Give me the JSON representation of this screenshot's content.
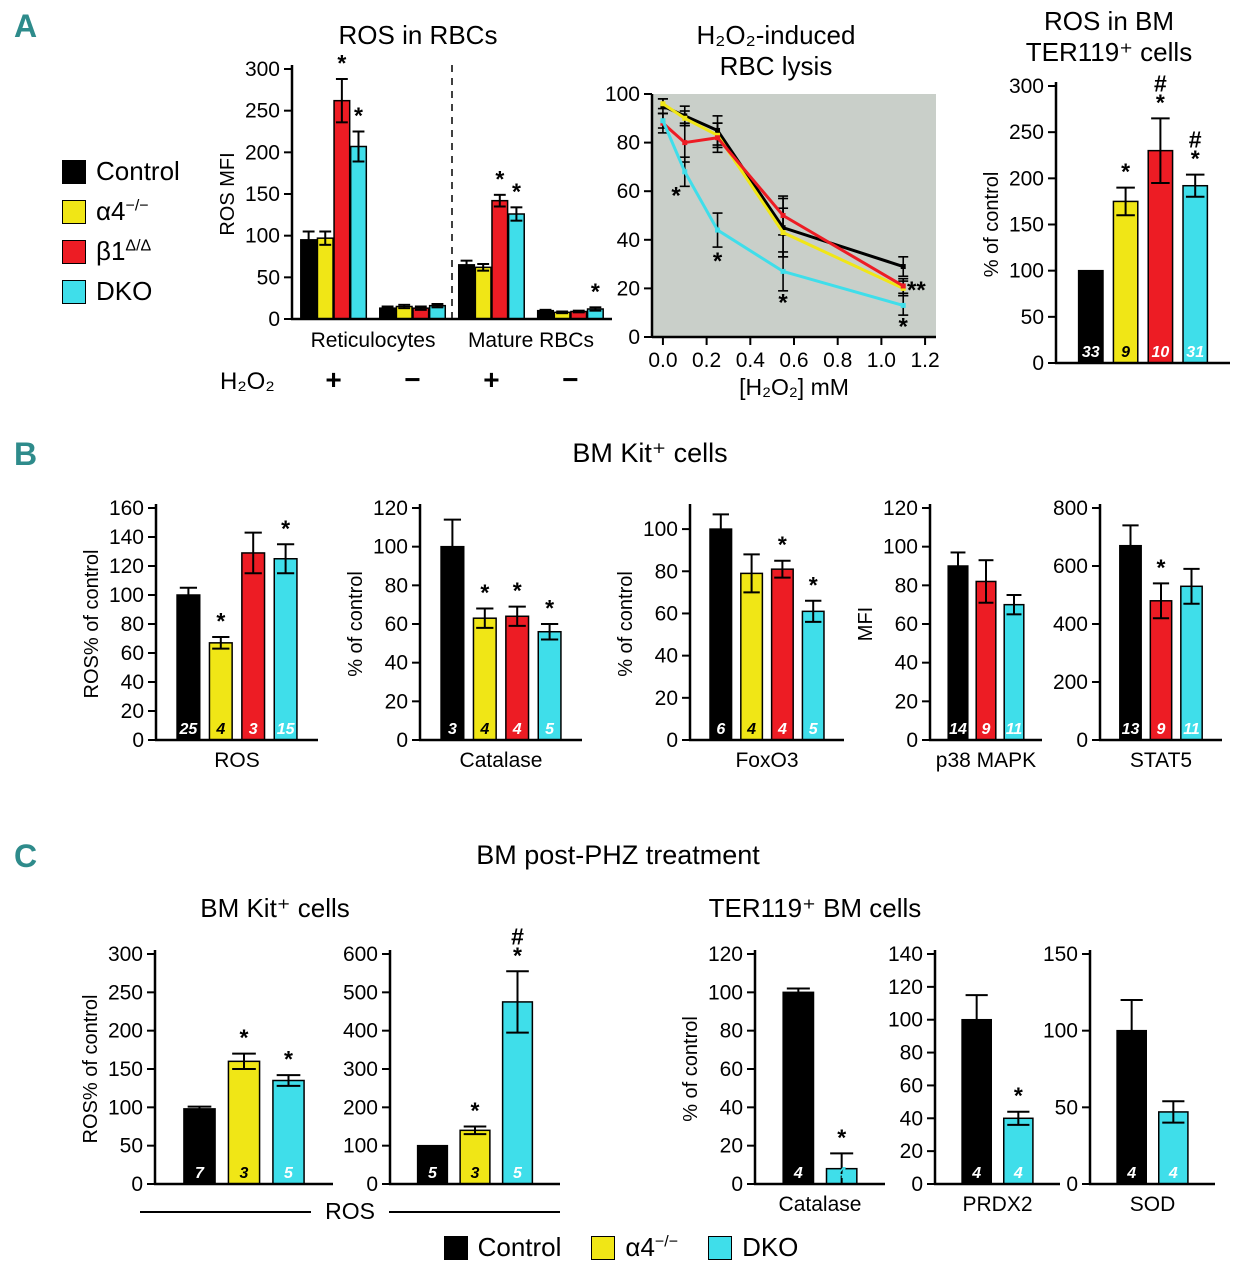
{
  "panels": {
    "a": "A",
    "b": "B",
    "c": "C"
  },
  "colors": {
    "control": "#000000",
    "a4": "#f0e616",
    "b1": "#ed1c24",
    "dko": "#3fdeea",
    "panel": "#2e8b8b",
    "line_bg": "#c9cfc9"
  },
  "titles": {
    "a1": "ROS in RBCs",
    "a2": "H₂O₂-induced\nRBC lysis",
    "a3": "ROS in BM\nTER119⁺ cells",
    "b": "BM Kit⁺ cells",
    "c": "BM post-PHZ treatment",
    "c_kit": "BM Kit⁺ cells",
    "c_ter": "TER119⁺ BM cells",
    "ros_shared": "ROS"
  },
  "legend_a": {
    "items": [
      {
        "key": "control",
        "base": "Control",
        "sup": ""
      },
      {
        "key": "a4",
        "base": "α4",
        "sup": "−/−"
      },
      {
        "key": "b1",
        "base": "β1",
        "sup": "Δ/Δ"
      },
      {
        "key": "dko",
        "base": "DKO",
        "sup": ""
      }
    ]
  },
  "legend_c": {
    "items": [
      {
        "key": "control",
        "base": "Control",
        "sup": ""
      },
      {
        "key": "a4",
        "base": "α4",
        "sup": "−/−"
      },
      {
        "key": "dko",
        "base": "DKO",
        "sup": ""
      }
    ]
  },
  "chart_data": [
    {
      "type": "bar",
      "ylabel": "ROS MFI",
      "ylim": [
        0,
        300
      ],
      "ystep": 50,
      "bar_gap": 0.06,
      "group_gap": 0.75,
      "groups": [
        {
          "sign": "+",
          "bars": [
            {
              "c": "control",
              "v": 95,
              "e": 10
            },
            {
              "c": "a4",
              "v": 97,
              "e": 8
            },
            {
              "c": "b1",
              "v": 262,
              "e": 26,
              "m": "*"
            },
            {
              "c": "dko",
              "v": 207,
              "e": 18,
              "m": "*"
            }
          ]
        },
        {
          "sign": "−",
          "bars": [
            {
              "c": "control",
              "v": 13,
              "e": 2
            },
            {
              "c": "a4",
              "v": 15,
              "e": 2
            },
            {
              "c": "b1",
              "v": 13,
              "e": 2
            },
            {
              "c": "dko",
              "v": 16,
              "e": 2
            }
          ]
        },
        {
          "sign": "+",
          "bars": [
            {
              "c": "control",
              "v": 65,
              "e": 5
            },
            {
              "c": "a4",
              "v": 62,
              "e": 4
            },
            {
              "c": "b1",
              "v": 142,
              "e": 7,
              "m": "*"
            },
            {
              "c": "dko",
              "v": 126,
              "e": 8,
              "m": "*"
            }
          ]
        },
        {
          "sign": "−",
          "bars": [
            {
              "c": "control",
              "v": 10,
              "e": 1
            },
            {
              "c": "a4",
              "v": 8,
              "e": 1
            },
            {
              "c": "b1",
              "v": 9,
              "e": 1
            },
            {
              "c": "dko",
              "v": 12,
              "e": 2,
              "m": "*"
            }
          ]
        }
      ],
      "super_labels": [
        {
          "label": "Reticulocytes",
          "from": 0,
          "to": 1
        },
        {
          "label": "Mature RBCs",
          "from": 2,
          "to": 3
        }
      ],
      "row_label": "H₂O₂",
      "divider_after": 1
    },
    {
      "type": "line",
      "xlabel": "[H₂O₂] mM",
      "xlim": [
        -0.05,
        1.25
      ],
      "xticks": [
        0.0,
        0.2,
        0.4,
        0.6,
        0.8,
        1.0,
        1.2
      ],
      "ylim": [
        0,
        100
      ],
      "ystep": 20,
      "x": [
        0,
        0.1,
        0.25,
        0.55,
        1.1
      ],
      "series": [
        {
          "c": "control",
          "y": [
            95,
            91,
            85,
            45,
            29
          ],
          "e": [
            3,
            4,
            6,
            12,
            4
          ]
        },
        {
          "c": "a4",
          "y": [
            96,
            90,
            83,
            43,
            20
          ],
          "e": [
            2,
            3,
            5,
            10,
            3
          ]
        },
        {
          "c": "b1",
          "y": [
            88,
            80,
            82,
            50,
            21
          ],
          "e": [
            4,
            8,
            6,
            8,
            3
          ]
        },
        {
          "c": "dko",
          "y": [
            89,
            68,
            44,
            27,
            13
          ],
          "e": [
            3,
            6,
            7,
            8,
            4
          ]
        }
      ],
      "annotations": [
        {
          "x": 0.06,
          "y": 55,
          "t": "*"
        },
        {
          "x": 0.25,
          "y": 28,
          "t": "*"
        },
        {
          "x": 0.55,
          "y": 11,
          "t": "*"
        },
        {
          "x": 1.16,
          "y": 16,
          "t": "**"
        },
        {
          "x": 1.1,
          "y": 1,
          "t": "*"
        }
      ]
    },
    {
      "type": "bar",
      "ylabel": "% of control",
      "ylim": [
        0,
        300
      ],
      "ystep": 50,
      "groups": [
        {
          "bars": [
            {
              "c": "control",
              "v": 100,
              "n": "33"
            },
            {
              "c": "a4",
              "v": 175,
              "e": 15,
              "m": "*",
              "n": "9"
            },
            {
              "c": "b1",
              "v": 230,
              "e": 35,
              "m": "#*",
              "n": "10"
            },
            {
              "c": "dko",
              "v": 192,
              "e": 12,
              "m": "#*",
              "n": "31"
            }
          ]
        }
      ]
    },
    {
      "type": "bar",
      "ylabel": "ROS% of control",
      "ylim": [
        0,
        160
      ],
      "ystep": 20,
      "groups": [
        {
          "label": "ROS",
          "bars": [
            {
              "c": "control",
              "v": 100,
              "e": 5,
              "n": "25"
            },
            {
              "c": "a4",
              "v": 67,
              "e": 4,
              "m": "*",
              "n": "4"
            },
            {
              "c": "b1",
              "v": 129,
              "e": 14,
              "n": "3"
            },
            {
              "c": "dko",
              "v": 125,
              "e": 10,
              "m": "*",
              "n": "15"
            }
          ]
        }
      ]
    },
    {
      "type": "bar",
      "ylabel": "% of control",
      "ylim": [
        0,
        120
      ],
      "ystep": 20,
      "groups": [
        {
          "label": "Catalase",
          "bars": [
            {
              "c": "control",
              "v": 100,
              "e": 14,
              "n": "3"
            },
            {
              "c": "a4",
              "v": 63,
              "e": 5,
              "m": "*",
              "n": "4"
            },
            {
              "c": "b1",
              "v": 64,
              "e": 5,
              "m": "*",
              "n": "4"
            },
            {
              "c": "dko",
              "v": 56,
              "e": 4,
              "m": "*",
              "n": "5"
            }
          ]
        }
      ]
    },
    {
      "type": "bar",
      "ylabel": "% of control",
      "ylim": [
        0,
        110
      ],
      "ystep": 20,
      "groups": [
        {
          "label": "FoxO3",
          "bars": [
            {
              "c": "control",
              "v": 100,
              "e": 7,
              "n": "6"
            },
            {
              "c": "a4",
              "v": 79,
              "e": 9,
              "n": "4"
            },
            {
              "c": "b1",
              "v": 81,
              "e": 4,
              "m": "*",
              "n": "4"
            },
            {
              "c": "dko",
              "v": 61,
              "e": 5,
              "m": "*",
              "n": "5"
            }
          ]
        }
      ]
    },
    {
      "type": "bar",
      "ylabel": "MFI",
      "ylim": [
        0,
        120
      ],
      "ystep": 20,
      "groups": [
        {
          "label": "p38 MAPK",
          "bars": [
            {
              "c": "control",
              "v": 90,
              "e": 7,
              "n": "14"
            },
            {
              "c": "b1",
              "v": 82,
              "e": 11,
              "n": "9"
            },
            {
              "c": "dko",
              "v": 70,
              "e": 5,
              "n": "11"
            }
          ]
        }
      ]
    },
    {
      "type": "bar",
      "ylim": [
        0,
        800
      ],
      "ystep": 200,
      "groups": [
        {
          "label": "STAT5",
          "bars": [
            {
              "c": "control",
              "v": 670,
              "e": 70,
              "n": "13"
            },
            {
              "c": "b1",
              "v": 480,
              "e": 60,
              "m": "*",
              "n": "9"
            },
            {
              "c": "dko",
              "v": 530,
              "e": 60,
              "n": "11"
            }
          ]
        }
      ]
    },
    {
      "type": "bar",
      "ylabel": "ROS% of control",
      "ylim": [
        0,
        300
      ],
      "ystep": 50,
      "groups": [
        {
          "bars": [
            {
              "c": "control",
              "v": 98,
              "e": 3,
              "n": "7"
            },
            {
              "c": "a4",
              "v": 160,
              "e": 10,
              "m": "*",
              "n": "3"
            },
            {
              "c": "dko",
              "v": 135,
              "e": 7,
              "m": "*",
              "n": "5"
            }
          ]
        }
      ]
    },
    {
      "type": "bar",
      "ylim": [
        0,
        600
      ],
      "ystep": 100,
      "groups": [
        {
          "bars": [
            {
              "c": "control",
              "v": 100,
              "n": "5"
            },
            {
              "c": "a4",
              "v": 140,
              "e": 10,
              "m": "*",
              "n": "3"
            },
            {
              "c": "dko",
              "v": 475,
              "e": 80,
              "m": "#*",
              "n": "5"
            }
          ]
        }
      ]
    },
    {
      "type": "bar",
      "ylabel": "% of control",
      "ylim": [
        0,
        120
      ],
      "ystep": 20,
      "groups": [
        {
          "label": "Catalase",
          "bars": [
            {
              "c": "control",
              "v": 100,
              "e": 2,
              "n": "4"
            },
            {
              "c": "dko",
              "v": 8,
              "e": 8,
              "m": "*",
              "n": "4"
            }
          ]
        }
      ]
    },
    {
      "type": "bar",
      "ylim": [
        0,
        140
      ],
      "ystep": 20,
      "groups": [
        {
          "label": "PRDX2",
          "bars": [
            {
              "c": "control",
              "v": 100,
              "e": 15,
              "n": "4"
            },
            {
              "c": "dko",
              "v": 40,
              "e": 4,
              "m": "*",
              "n": "4"
            }
          ]
        }
      ]
    },
    {
      "type": "bar",
      "ylim": [
        0,
        150
      ],
      "ystep": 50,
      "groups": [
        {
          "label": "SOD",
          "bars": [
            {
              "c": "control",
              "v": 100,
              "e": 20,
              "n": "4"
            },
            {
              "c": "dko",
              "v": 47,
              "e": 7,
              "n": "4"
            }
          ]
        }
      ]
    }
  ]
}
